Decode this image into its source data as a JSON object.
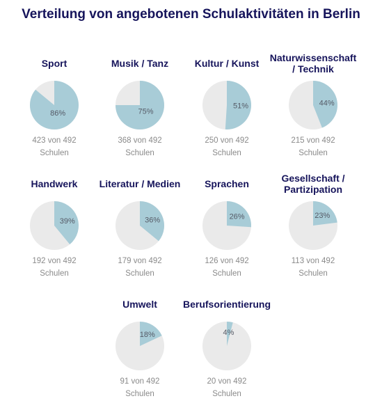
{
  "title": "Verteilung von angebotenen Schulaktivitäten in Berlin",
  "colors": {
    "filled": "#a8ccd7",
    "remainder": "#eaeaea",
    "title": "#16145b"
  },
  "chart_data": {
    "type": "pie",
    "title": "Verteilung von angebotenen Schulaktivitäten in Berlin",
    "unit_label": "Schulen",
    "total": 492,
    "items": [
      {
        "name": "Sport",
        "percent": 86,
        "count": 423,
        "caption_line1": "423 von 492",
        "caption_line2": "Schulen"
      },
      {
        "name": "Musik / Tanz",
        "percent": 75,
        "count": 368,
        "caption_line1": "368 von 492",
        "caption_line2": "Schulen"
      },
      {
        "name": "Kultur / Kunst",
        "percent": 51,
        "count": 250,
        "caption_line1": "250 von 492",
        "caption_line2": "Schulen"
      },
      {
        "name": "Naturwissenschaft / Technik",
        "percent": 44,
        "count": 215,
        "caption_line1": "215 von 492",
        "caption_line2": "Schulen"
      },
      {
        "name": "Handwerk",
        "percent": 39,
        "count": 192,
        "caption_line1": "192 von 492",
        "caption_line2": "Schulen"
      },
      {
        "name": "Literatur / Medien",
        "percent": 36,
        "count": 179,
        "caption_line1": "179 von 492",
        "caption_line2": "Schulen"
      },
      {
        "name": "Sprachen",
        "percent": 26,
        "count": 126,
        "caption_line1": "126 von 492",
        "caption_line2": "Schulen"
      },
      {
        "name": "Gesellschaft / Partizipation",
        "percent": 23,
        "count": 113,
        "caption_line1": "113 von 492",
        "caption_line2": "Schulen"
      },
      {
        "name": "Umwelt",
        "percent": 18,
        "count": 91,
        "caption_line1": "91 von 492",
        "caption_line2": "Schulen"
      },
      {
        "name": "Berufsorientierung",
        "percent": 4,
        "count": 20,
        "caption_line1": "20 von 492",
        "caption_line2": "Schulen"
      }
    ]
  }
}
